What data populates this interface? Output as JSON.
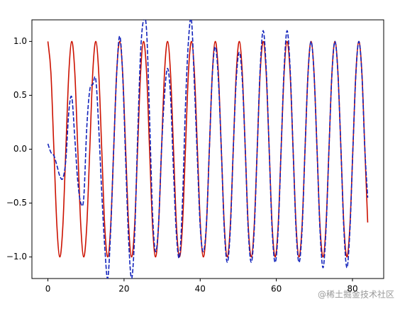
{
  "chart_data": {
    "type": "line",
    "x": [
      0,
      0.79,
      1.57,
      2.36,
      3.14,
      3.93,
      4.71,
      5.5,
      6.28,
      7.07,
      7.85,
      8.64,
      9.42,
      10.21,
      11.0,
      11.78,
      12.57,
      13.35,
      14.14,
      14.92,
      15.71,
      16.49,
      17.28,
      18.06,
      18.85,
      19.63,
      20.42,
      21.21,
      21.99,
      22.78,
      23.56,
      24.35,
      25.13,
      25.92,
      26.7,
      27.49,
      28.27,
      29.06,
      29.85,
      30.63,
      31.42,
      32.2,
      32.99,
      33.77,
      34.56,
      35.34,
      36.13,
      36.91,
      37.7,
      38.48,
      39.27,
      40.06,
      40.84,
      41.63,
      42.41,
      43.2,
      43.98,
      44.77,
      45.55,
      46.34,
      47.12,
      47.91,
      48.69,
      49.48,
      50.27,
      51.05,
      51.84,
      52.62,
      53.41,
      54.19,
      54.98,
      55.76,
      56.55,
      57.33,
      58.12,
      58.9,
      59.69,
      60.48,
      61.26,
      62.05,
      62.83,
      63.62,
      64.4,
      65.19,
      65.97,
      66.76,
      67.54,
      68.33,
      69.12,
      69.9,
      70.69,
      71.47,
      72.26,
      73.04,
      73.83,
      74.61,
      75.4,
      76.18,
      76.97,
      77.75,
      78.54,
      79.33,
      80.11,
      80.9,
      81.68,
      82.47,
      83.25,
      84
    ],
    "series": [
      {
        "color": "#cc1100",
        "dash": false,
        "values": [
          1,
          0.71,
          0,
          -0.71,
          -1,
          -0.71,
          0,
          0.71,
          1,
          0.71,
          0,
          -0.71,
          -1,
          -0.71,
          0,
          0.71,
          1,
          0.71,
          0,
          -0.71,
          -1,
          -0.71,
          0,
          0.71,
          1,
          0.71,
          0,
          -0.71,
          -1,
          -0.71,
          0,
          0.71,
          1,
          0.71,
          0,
          -0.71,
          -1,
          -0.71,
          0,
          0.71,
          1,
          0.71,
          0,
          -0.71,
          -1,
          -0.71,
          0,
          0.71,
          1,
          0.71,
          0,
          -0.71,
          -1,
          -0.71,
          0,
          0.71,
          1,
          0.71,
          0,
          -0.71,
          -1,
          -0.71,
          0,
          0.71,
          1,
          0.71,
          0,
          -0.71,
          -1,
          -0.71,
          0,
          0.71,
          1,
          0.71,
          0,
          -0.71,
          -1,
          -0.71,
          0,
          0.71,
          1,
          0.71,
          0,
          -0.71,
          -1,
          -0.71,
          0,
          0.71,
          1,
          0.71,
          0,
          -0.71,
          -1,
          -0.71,
          0,
          0.71,
          1,
          0.71,
          0,
          -0.71,
          -1,
          -0.71,
          0,
          0.71,
          1,
          0.71,
          0,
          -0.68
        ]
      },
      {
        "color": "#1122bb",
        "dash": true,
        "values": [
          0.05,
          -0.03,
          -0.06,
          -0.15,
          -0.25,
          -0.27,
          -0.1,
          0.35,
          0.48,
          0.1,
          -0.3,
          -0.5,
          -0.45,
          0.2,
          0.55,
          0.6,
          0.65,
          0.2,
          -0.4,
          -0.9,
          -1.2,
          -0.75,
          0.0,
          0.7,
          1.05,
          0.7,
          -0.1,
          -0.85,
          -1.2,
          -0.8,
          0.1,
          0.9,
          1.2,
          1.1,
          0.3,
          -0.6,
          -0.95,
          -0.7,
          0.0,
          0.5,
          0.75,
          0.5,
          -0.2,
          -0.8,
          -1.0,
          -0.5,
          0.4,
          1.0,
          1.2,
          0.6,
          -0.1,
          -0.75,
          -0.95,
          -0.7,
          0.0,
          0.7,
          0.95,
          0.65,
          0.0,
          -0.75,
          -1.05,
          -0.75,
          0.0,
          0.65,
          0.9,
          0.65,
          0,
          -0.75,
          -1.05,
          -0.75,
          0,
          0.75,
          1.1,
          0.75,
          0,
          -0.75,
          -1.05,
          -0.75,
          0,
          0.75,
          1.1,
          0.75,
          0,
          -0.75,
          -1.05,
          -0.75,
          0,
          0.7,
          1.0,
          0.7,
          0,
          -0.75,
          -1.1,
          -0.75,
          0,
          0.7,
          1.0,
          0.7,
          0,
          -0.75,
          -1.1,
          -0.75,
          0,
          0.7,
          1.0,
          0.7,
          0.0,
          -0.45
        ]
      }
    ],
    "xlim": [
      -4.2,
      88.2
    ],
    "xticks": [
      0,
      20,
      40,
      60,
      80
    ],
    "ylim": [
      -1.2,
      1.2
    ],
    "yticks": [
      {
        "value": -1,
        "label": "−1.0"
      },
      {
        "value": -0.5,
        "label": "−0.5"
      },
      {
        "value": 0,
        "label": "0.0"
      },
      {
        "value": 0.5,
        "label": "0.5"
      },
      {
        "value": 1,
        "label": "1.0"
      }
    ],
    "watermark": "@稀土掘金技术社区"
  }
}
